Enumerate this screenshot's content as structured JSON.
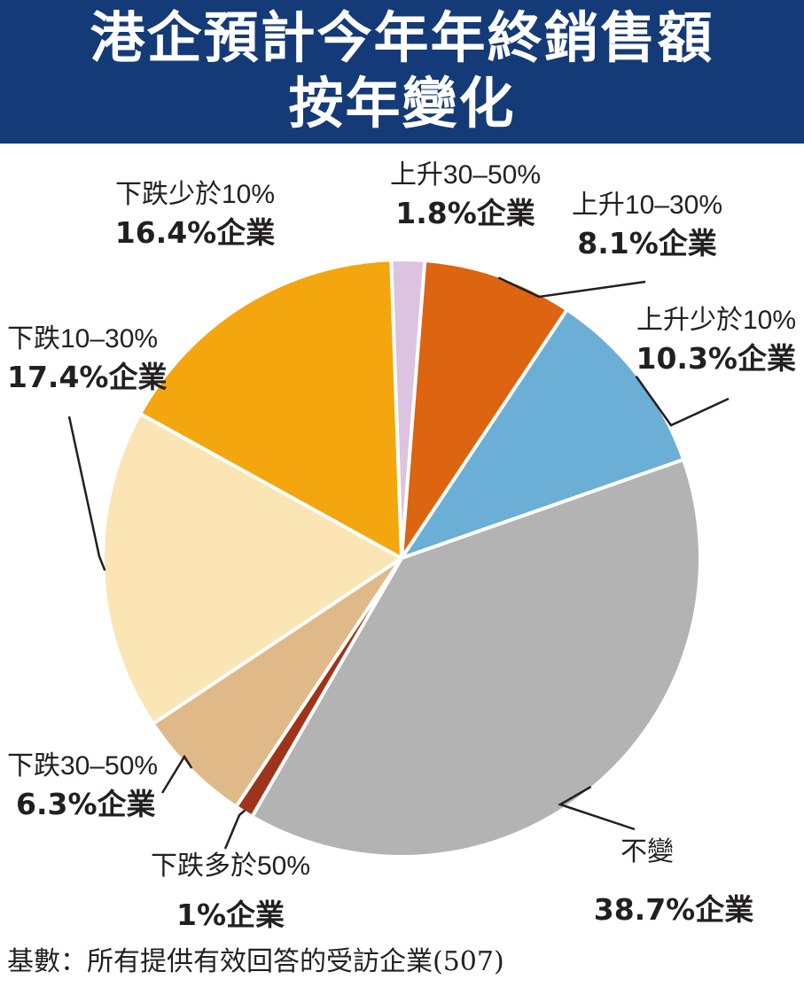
{
  "title": {
    "line1": "港企預計今年年終銷售額",
    "line2": "按年變化"
  },
  "source_note": "基數：所有提供有效回答的受訪企業(507)",
  "chart_data": {
    "type": "pie",
    "title": "港企預計今年年終銷售額按年變化",
    "unit": "%",
    "slices": [
      {
        "label": "上升30–50%",
        "value": 1.8,
        "value_label": "1.8%企業",
        "color": "#dcc3df"
      },
      {
        "label": "上升10–30%",
        "value": 8.1,
        "value_label": "8.1%企業",
        "color": "#dd6410"
      },
      {
        "label": "上升少於10%",
        "value": 10.3,
        "value_label": "10.3%企業",
        "color": "#6baed6"
      },
      {
        "label": "不變",
        "value": 38.7,
        "value_label": "38.7%企業",
        "color": "#b3b3b3"
      },
      {
        "label": "下跌多於50%",
        "value": 1,
        "value_label": "1%企業",
        "color": "#a0341a"
      },
      {
        "label": "下跌30–50%",
        "value": 6.3,
        "value_label": "6.3%企業",
        "color": "#dfb987"
      },
      {
        "label": "下跌10–30%",
        "value": 17.4,
        "value_label": "17.4%企業",
        "color": "#fbe5b5"
      },
      {
        "label": "下跌少於10%",
        "value": 16.4,
        "value_label": "16.4%企業",
        "color": "#f3a60d"
      }
    ]
  }
}
